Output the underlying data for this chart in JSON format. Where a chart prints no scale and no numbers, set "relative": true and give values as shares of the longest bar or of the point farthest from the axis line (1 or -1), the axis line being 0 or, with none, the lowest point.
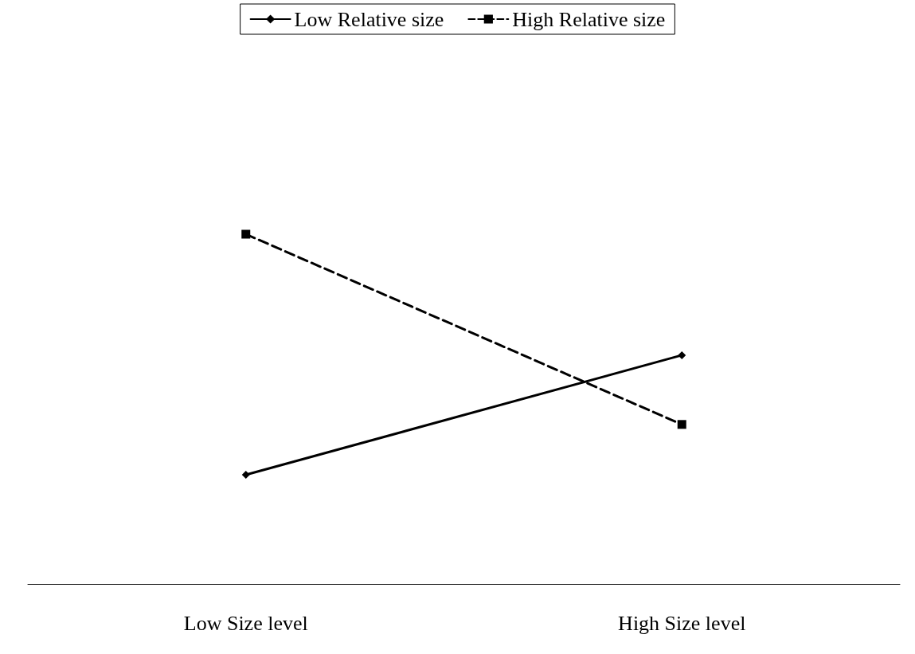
{
  "chart_data": {
    "type": "line",
    "relative": true,
    "categories": [
      "Low Size level",
      "High Size level"
    ],
    "series": [
      {
        "name": "Low Relative size",
        "color": "#000000",
        "values": [
          0.312,
          0.654
        ],
        "marker": "diamond",
        "line_style": "solid"
      },
      {
        "name": "High Relative size",
        "color": "#000000",
        "values": [
          1,
          0.456
        ],
        "marker": "square",
        "line_style": "dashed"
      }
    ],
    "legend": "top",
    "grid": false
  }
}
